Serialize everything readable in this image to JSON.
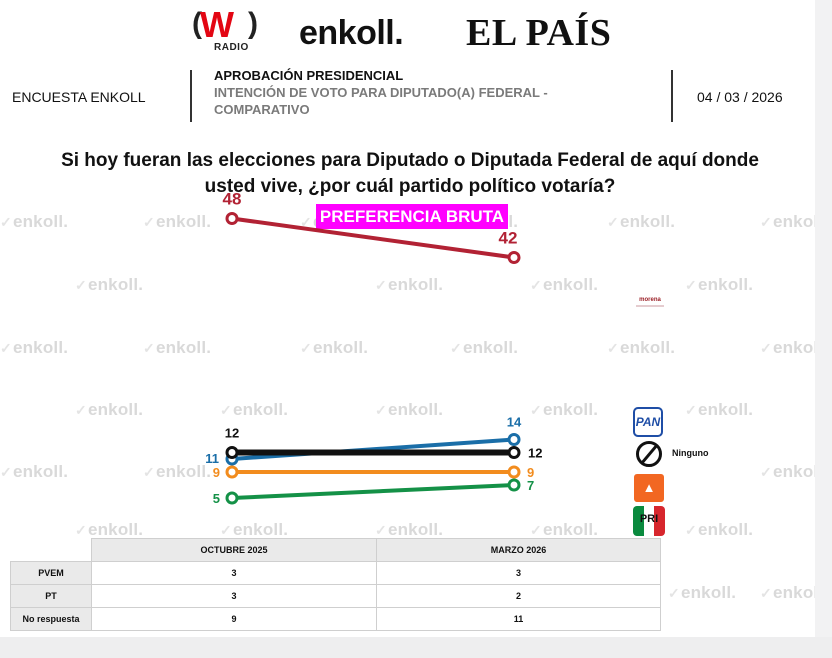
{
  "logos": {
    "radio_w": "W",
    "radio_label": "RADIO",
    "enkoll": "enkoll.",
    "elpais": "EL PAÍS"
  },
  "watermark": "enkoll.",
  "header": {
    "left": "ENCUESTA ENKOLL",
    "title": "APROBACIÓN PRESIDENCIAL",
    "subtitle": "INTENCIÓN DE VOTO PARA DIPUTADO(A) FEDERAL - COMPARATIVO",
    "date": "04 / 03 / 2026"
  },
  "question": "Si hoy fueran las elecciones para Diputado o Diputada Federal de aquí donde usted vive, ¿por cuál partido político votaría?",
  "badge": "PREFERENCIA BRUTA",
  "legend": {
    "morena": "morena",
    "pan": "PAN",
    "ninguno": "Ninguno",
    "mc": "",
    "pri": "PRI"
  },
  "chart_data": {
    "type": "line",
    "x": [
      "OCTUBRE 2025",
      "MARZO 2026"
    ],
    "series": [
      {
        "name": "morena",
        "values": [
          48,
          42
        ],
        "color": "#b22234"
      },
      {
        "name": "PAN",
        "values": [
          11,
          14
        ],
        "color": "#1a6ea8"
      },
      {
        "name": "Ninguno",
        "values": [
          12,
          12
        ],
        "color": "#111111"
      },
      {
        "name": "",
        "values": [
          9,
          9
        ],
        "color": "#f28c1e"
      },
      {
        "name": "",
        "values": [
          5,
          7
        ],
        "color": "#149147"
      }
    ]
  },
  "table": {
    "columns": [
      "OCTUBRE 2025",
      "MARZO 2026"
    ],
    "rows": [
      {
        "label": "PVEM",
        "values": [
          "3",
          "3"
        ]
      },
      {
        "label": "PT",
        "values": [
          "3",
          "2"
        ]
      },
      {
        "label": "No respuesta",
        "values": [
          "9",
          "11"
        ]
      }
    ]
  }
}
